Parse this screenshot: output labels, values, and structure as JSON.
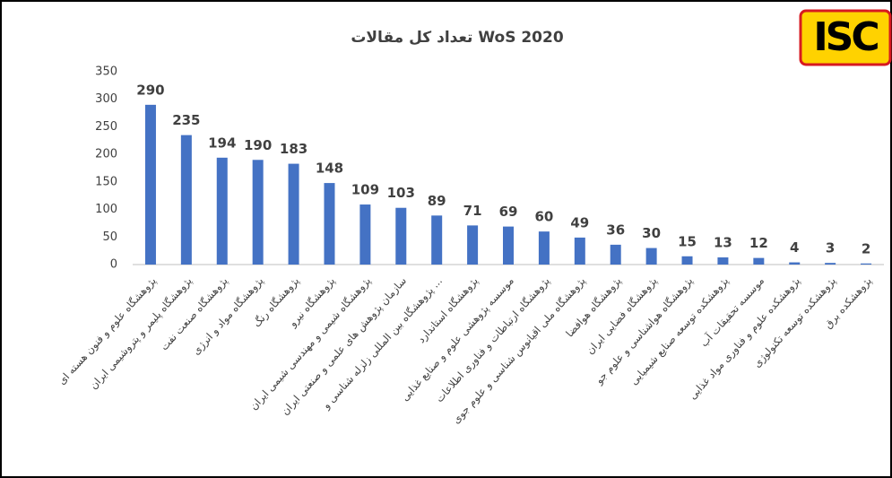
{
  "logo": "ISC",
  "chart_data": {
    "type": "bar",
    "title": "تعداد کل مقالات WoS 2020",
    "categories": [
      "پژوهشگاه علوم و فنون هسته ای",
      "پژوهشگاه پلیمر و پتروشیمی ایران",
      "پژوهشگاه صنعت نفت",
      "پژوهشگاه مواد و انرژی",
      "پژوهشگاه رنگ",
      "پژوهشگاه نیرو",
      "پژوهشگاه شیمی و مهندسی شیمی ایران",
      "سازمان پژوهش های علمی و صنعتی ایران",
      "پژوهشگاه بین المللی زلزله شناسی و ...",
      "پژوهشگاه استاندارد",
      "موسسه پژوهشی علوم و صنایع غذایی",
      "پژوهشگاه ارتباطات و فناوری اطلاعات",
      "پژوهشگاه ملی اقیانوس شناسی و علوم جوی",
      "پژوهشگاه هوافضا",
      "پژوهشگاه فضایی ایران",
      "پژوهشگاه هواشناسی و علوم جو",
      "پژوهشکده توسعه صنایع شیمیایی",
      "موسسه تحقیقات آب",
      "پژوهشکده علوم و فناوری مواد غذایی",
      "پژوهشکده توسعه تکنولوژی",
      "پژوهشکده برق"
    ],
    "values": [
      290,
      235,
      194,
      190,
      183,
      148,
      109,
      103,
      89,
      71,
      69,
      60,
      49,
      36,
      30,
      15,
      13,
      12,
      4,
      3,
      2
    ],
    "color": "#4472c4",
    "ylim": [
      0,
      350
    ],
    "yticks": [
      0,
      50,
      100,
      150,
      200,
      250,
      300,
      350
    ],
    "grid": false
  }
}
